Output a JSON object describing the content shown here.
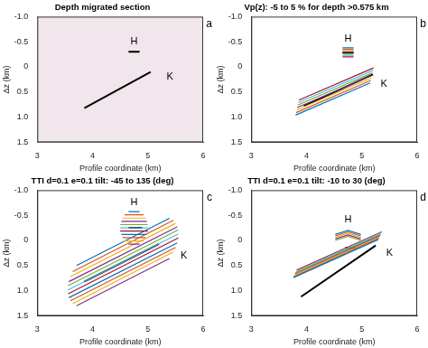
{
  "chart_data": [
    {
      "type": "line",
      "label": "a",
      "title": "Depth migrated section",
      "xlabel": "Profile coordinate (km)",
      "ylabel": "Δz (km)",
      "xlim": [
        3,
        6
      ],
      "xticks": [
        3,
        4,
        5,
        6
      ],
      "ylim": [
        1.5,
        -1
      ],
      "yticks": [
        {
          "value": -1,
          "label": "-1.0"
        },
        -0.5,
        0,
        0.5,
        {
          "value": 1,
          "label": "1.0"
        },
        1.5
      ],
      "grid": false,
      "annotations": [
        {
          "text": "H",
          "x": 4.75,
          "y": -0.5
        },
        {
          "text": "K",
          "x": 5.4,
          "y": 0.2
        }
      ],
      "series": [
        {
          "color": "#000000",
          "x": [
            4.65,
            4.85
          ],
          "values": [
            -0.3,
            -0.3
          ]
        },
        {
          "color": "#000000",
          "x": [
            3.85,
            5.05
          ],
          "values": [
            0.82,
            0.1
          ]
        }
      ]
    },
    {
      "type": "line",
      "label": "b",
      "title": "Vp(z): -5 to 5 % for depth >0.575 km",
      "xlabel": "Profile coordinate (km)",
      "ylabel": "Δz (km)",
      "xlim": [
        3,
        6
      ],
      "xticks": [
        3,
        4,
        5,
        6
      ],
      "ylim": [
        1.5,
        -1
      ],
      "yticks": [
        {
          "value": -1,
          "label": "-1.0"
        },
        -0.5,
        0,
        0.5,
        {
          "value": 1,
          "label": "1.0"
        },
        1.5
      ],
      "grid": false,
      "annotations": [
        {
          "text": "H",
          "x": 4.75,
          "y": -0.55
        },
        {
          "text": "K",
          "x": 5.4,
          "y": 0.35
        }
      ],
      "series": [
        {
          "color": "#0072BD",
          "x": [
            4.65,
            4.85
          ],
          "values": [
            -0.38,
            -0.38
          ]
        },
        {
          "color": "#D95319",
          "x": [
            4.65,
            4.85
          ],
          "values": [
            -0.35,
            -0.35
          ]
        },
        {
          "color": "#EDB120",
          "x": [
            4.65,
            4.85
          ],
          "values": [
            -0.32,
            -0.32
          ]
        },
        {
          "color": "#7E2F8E",
          "x": [
            4.65,
            4.85
          ],
          "values": [
            -0.29,
            -0.29
          ]
        },
        {
          "color": "#77AC30",
          "x": [
            4.65,
            4.85
          ],
          "values": [
            -0.26,
            -0.26
          ]
        },
        {
          "color": "#4DBEEE",
          "x": [
            4.65,
            4.85
          ],
          "values": [
            -0.23,
            -0.23
          ]
        },
        {
          "color": "#A2142F",
          "x": [
            4.65,
            4.85
          ],
          "values": [
            -0.2,
            -0.2
          ]
        },
        {
          "color": "#0072BD",
          "x": [
            3.8,
            5.15
          ],
          "values": [
            0.96,
            0.32
          ]
        },
        {
          "color": "#D95319",
          "x": [
            3.81,
            5.16
          ],
          "values": [
            0.91,
            0.27
          ]
        },
        {
          "color": "#EDB120",
          "x": [
            3.82,
            5.17
          ],
          "values": [
            0.86,
            0.22
          ]
        },
        {
          "color": "#7E2F8E",
          "x": [
            3.83,
            5.18
          ],
          "values": [
            0.81,
            0.17
          ]
        },
        {
          "color": "#77AC30",
          "x": [
            3.84,
            5.19
          ],
          "values": [
            0.76,
            0.12
          ]
        },
        {
          "color": "#4DBEEE",
          "x": [
            3.85,
            5.2
          ],
          "values": [
            0.71,
            0.07
          ]
        },
        {
          "color": "#A2142F",
          "x": [
            3.86,
            5.21
          ],
          "values": [
            0.66,
            0.02
          ]
        },
        {
          "color": "#000000",
          "x": [
            4.65,
            4.85
          ],
          "values": [
            -0.29,
            -0.29
          ]
        },
        {
          "color": "#000000",
          "x": [
            3.95,
            5.2
          ],
          "values": [
            0.78,
            0.15
          ]
        }
      ]
    },
    {
      "type": "line",
      "label": "c",
      "title": "TTI d=0.1 e=0.1 tilt: -45 to 135 (deg)",
      "xlabel": "Profile coordinate (km)",
      "ylabel": "Δz (km)",
      "xlim": [
        3,
        6
      ],
      "xticks": [
        3,
        4,
        5,
        6
      ],
      "ylim": [
        1.5,
        -1
      ],
      "yticks": [
        {
          "value": -1,
          "label": "-1.0"
        },
        -0.5,
        0,
        0.5,
        {
          "value": 1,
          "label": "1.0"
        },
        1.5
      ],
      "grid": false,
      "annotations": [
        {
          "text": "H",
          "x": 4.75,
          "y": -0.75
        },
        {
          "text": "K",
          "x": 5.65,
          "y": 0.3
        }
      ],
      "series": [
        {
          "color": "#0072BD",
          "x": [
            4.65,
            4.85
          ],
          "values": [
            -0.575,
            -0.575
          ]
        },
        {
          "color": "#D95319",
          "x": [
            4.58,
            4.92
          ],
          "values": [
            -0.51,
            -0.51
          ]
        },
        {
          "color": "#EDB120",
          "x": [
            4.54,
            4.96
          ],
          "values": [
            -0.445,
            -0.445
          ]
        },
        {
          "color": "#7E2F8E",
          "x": [
            4.52,
            4.98
          ],
          "values": [
            -0.38,
            -0.38
          ]
        },
        {
          "color": "#77AC30",
          "x": [
            4.5,
            5.0
          ],
          "values": [
            -0.315,
            -0.315
          ]
        },
        {
          "color": "#4DBEEE",
          "x": [
            4.5,
            5.0
          ],
          "values": [
            -0.25,
            -0.25
          ]
        },
        {
          "color": "#A2142F",
          "x": [
            4.5,
            5.0
          ],
          "values": [
            -0.185,
            -0.185
          ]
        },
        {
          "color": "#0072BD",
          "x": [
            4.52,
            4.98
          ],
          "values": [
            -0.12,
            -0.12
          ]
        },
        {
          "color": "#D95319",
          "x": [
            4.54,
            4.96
          ],
          "values": [
            -0.055,
            -0.055
          ]
        },
        {
          "color": "#EDB120",
          "x": [
            4.58,
            4.92
          ],
          "values": [
            0.01,
            0.01
          ]
        },
        {
          "color": "#7E2F8E",
          "x": [
            4.65,
            4.85
          ],
          "values": [
            0.075,
            0.075
          ]
        },
        {
          "color": "#0072BD",
          "x": [
            3.71,
            5.39
          ],
          "values": [
            0.5,
            -0.44
          ]
        },
        {
          "color": "#D95319",
          "x": [
            3.64,
            5.46
          ],
          "values": [
            0.62,
            -0.4
          ]
        },
        {
          "color": "#EDB120",
          "x": [
            3.6,
            5.5
          ],
          "values": [
            0.72,
            -0.34
          ]
        },
        {
          "color": "#7E2F8E",
          "x": [
            3.57,
            5.53
          ],
          "values": [
            0.82,
            -0.27
          ]
        },
        {
          "color": "#77AC30",
          "x": [
            3.56,
            5.55
          ],
          "values": [
            0.9,
            -0.21
          ]
        },
        {
          "color": "#4DBEEE",
          "x": [
            3.55,
            5.55
          ],
          "values": [
            0.99,
            -0.13
          ]
        },
        {
          "color": "#A2142F",
          "x": [
            3.56,
            5.55
          ],
          "values": [
            1.06,
            -0.05
          ]
        },
        {
          "color": "#0072BD",
          "x": [
            3.57,
            5.53
          ],
          "values": [
            1.14,
            0.05
          ]
        },
        {
          "color": "#D95319",
          "x": [
            3.6,
            5.5
          ],
          "values": [
            1.2,
            0.14
          ]
        },
        {
          "color": "#EDB120",
          "x": [
            3.64,
            5.46
          ],
          "values": [
            1.26,
            0.23
          ]
        },
        {
          "color": "#7E2F8E",
          "x": [
            3.71,
            5.39
          ],
          "values": [
            1.3,
            0.36
          ]
        },
        {
          "color": "#000000",
          "x": [
            4.65,
            4.9
          ],
          "values": [
            -0.25,
            -0.25
          ]
        },
        {
          "color": "#000000",
          "x": [
            3.85,
            5.2
          ],
          "values": [
            0.82,
            0.07
          ]
        }
      ]
    },
    {
      "type": "line",
      "label": "d",
      "title": "TTI d=0.1 e=0.1 tilt: -10 to 30 (deg)",
      "xlabel": "Profile coordinate (km)",
      "ylabel": "Δz (km)",
      "xlim": [
        3,
        6
      ],
      "xticks": [
        3,
        4,
        5,
        6
      ],
      "ylim": [
        1.5,
        -1
      ],
      "yticks": [
        {
          "value": -1,
          "label": "-1.0"
        },
        -0.5,
        0,
        0.5,
        {
          "value": 1,
          "label": "1.0"
        },
        1.5
      ],
      "grid": false,
      "annotations": [
        {
          "text": "H",
          "x": 4.75,
          "y": -0.42
        },
        {
          "text": "K",
          "x": 5.5,
          "y": 0.25
        }
      ],
      "series": [
        {
          "color": "#0072BD",
          "x": [
            4.52,
            4.75,
            4.98
          ],
          "values": [
            -0.12,
            -0.2,
            -0.12
          ]
        },
        {
          "color": "#D95319",
          "x": [
            4.52,
            4.75,
            4.98
          ],
          "values": [
            -0.09,
            -0.17,
            -0.09
          ]
        },
        {
          "color": "#EDB120",
          "x": [
            4.52,
            4.75,
            4.98
          ],
          "values": [
            -0.06,
            -0.14,
            -0.06
          ]
        },
        {
          "color": "#7E2F8E",
          "x": [
            4.52,
            4.75,
            4.98
          ],
          "values": [
            -0.03,
            -0.11,
            -0.03
          ]
        },
        {
          "color": "#77AC30",
          "x": [
            4.52,
            4.75,
            4.98
          ],
          "values": [
            0,
            -0.08,
            0
          ]
        },
        {
          "color": "#0072BD",
          "x": [
            3.76,
            5.3
          ],
          "values": [
            0.74,
            -0.02
          ]
        },
        {
          "color": "#D95319",
          "x": [
            3.77,
            5.31
          ],
          "values": [
            0.72,
            -0.05
          ]
        },
        {
          "color": "#EDB120",
          "x": [
            3.78,
            5.32
          ],
          "values": [
            0.69,
            -0.07
          ]
        },
        {
          "color": "#7E2F8E",
          "x": [
            3.79,
            5.33
          ],
          "values": [
            0.67,
            -0.1
          ]
        },
        {
          "color": "#77AC30",
          "x": [
            3.8,
            5.34
          ],
          "values": [
            0.64,
            -0.12
          ]
        },
        {
          "color": "#4DBEEE",
          "x": [
            3.81,
            5.35
          ],
          "values": [
            0.62,
            -0.15
          ]
        },
        {
          "color": "#A2142F",
          "x": [
            3.82,
            5.36
          ],
          "values": [
            0.59,
            -0.17
          ]
        },
        {
          "color": "#000000",
          "x": [
            4.7,
            4.9
          ],
          "values": [
            0.15,
            0.15
          ]
        },
        {
          "color": "#000000",
          "x": [
            3.9,
            5.25
          ],
          "values": [
            1.12,
            0.1
          ]
        }
      ]
    }
  ]
}
